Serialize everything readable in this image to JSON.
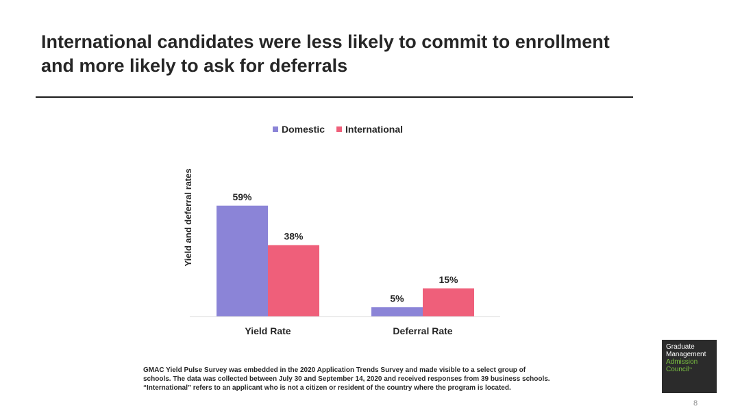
{
  "slide": {
    "title": "International candidates were less likely to commit to enrollment and more likely to ask for deferrals",
    "footnote_lines": [
      "GMAC Yield Pulse Survey was embedded in the 2020 Application Trends Survey and made visible to a select group of",
      "schools. The data was collected between July 30 and September 14, 2020 and received responses from 39 business schools.",
      "“International” refers to an applicant who is not a citizen or resident of the country where the program is located."
    ],
    "page_number": "8"
  },
  "logo": {
    "line1": "Graduate",
    "line2": "Management",
    "line3": "Admission",
    "line4": "Council",
    "trademark": "™",
    "color_text": "#ffffff",
    "color_accent": "#7cc242"
  },
  "chart_data": {
    "type": "bar",
    "title": "",
    "xlabel": "",
    "ylabel": "Yield and deferral rates",
    "categories": [
      "Yield Rate",
      "Deferral Rate"
    ],
    "series": [
      {
        "name": "Domestic",
        "values": [
          59,
          5
        ],
        "labels": [
          "59%",
          "5%"
        ],
        "color": "#8b84d7"
      },
      {
        "name": "International",
        "values": [
          38,
          15
        ],
        "labels": [
          "38%",
          "15%"
        ],
        "color": "#ef5f7a"
      }
    ],
    "ylim": [
      0,
      70
    ],
    "grid": false,
    "legend": "top-center"
  }
}
